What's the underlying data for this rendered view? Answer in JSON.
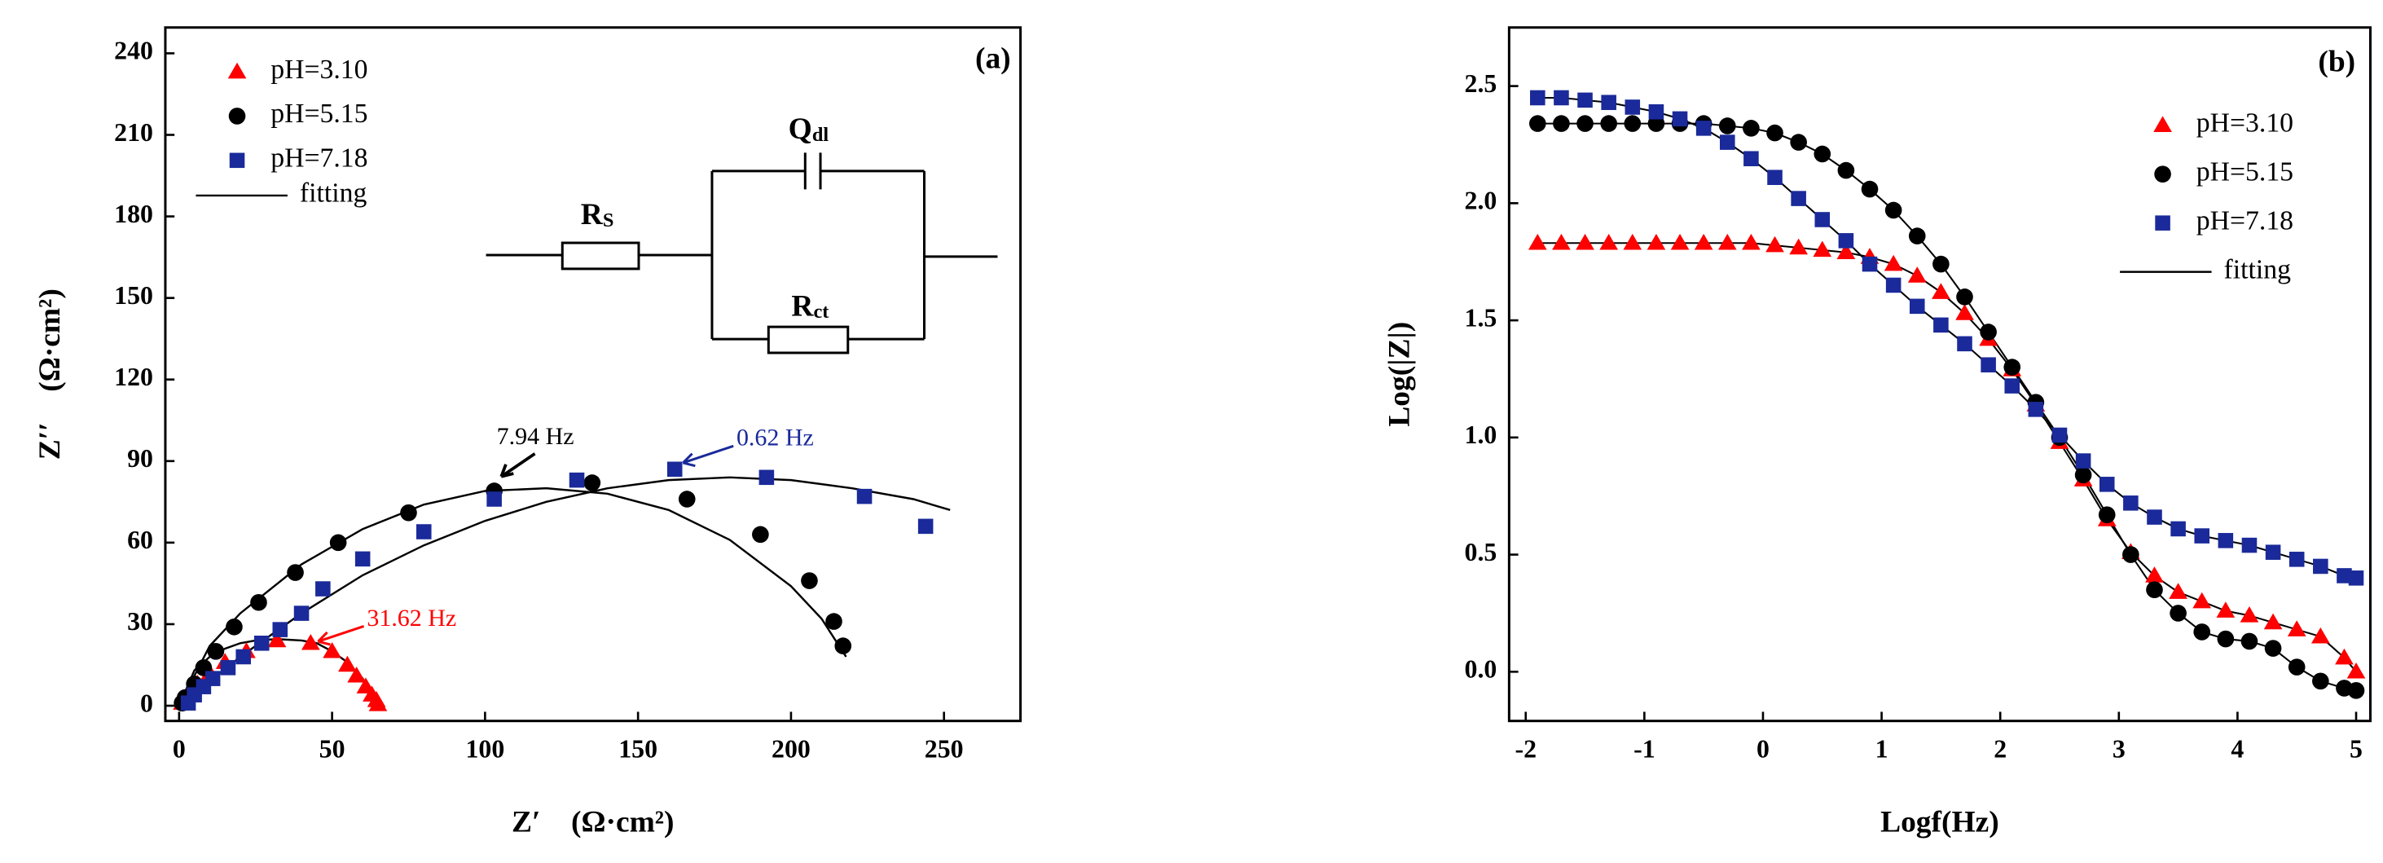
{
  "chart_data": [
    {
      "type": "scatter",
      "panel_label": "(a)",
      "xlabel": "Z′　(Ω·cm²)",
      "ylabel": "Z′′　(Ω·cm²)",
      "xlim": [
        -4.5,
        275
      ],
      "ylim": [
        -5.6,
        249.5
      ],
      "xticks": [
        0,
        50,
        100,
        150,
        200,
        250
      ],
      "yticks": [
        0,
        30,
        60,
        90,
        120,
        150,
        180,
        210,
        240
      ],
      "series": [
        {
          "name": "pH=3.10",
          "color": "#ff0000",
          "marker": "triangle",
          "x": [
            1,
            3,
            6,
            10,
            15,
            22,
            32,
            43,
            50,
            55,
            58,
            61,
            63,
            64.5,
            65
          ],
          "values": [
            1,
            4,
            8,
            12,
            16,
            20,
            24,
            23,
            20,
            15,
            11,
            7,
            4,
            2,
            0.5
          ]
        },
        {
          "name": "pH=5.15",
          "color": "#000000",
          "marker": "circle",
          "x": [
            1,
            2,
            5,
            8,
            12,
            18,
            26,
            38,
            52,
            75,
            103,
            135,
            166,
            190,
            206,
            214,
            217
          ],
          "values": [
            1,
            3,
            8,
            14,
            20,
            29,
            38,
            49,
            60,
            71,
            79,
            82,
            76,
            63,
            46,
            31,
            22
          ]
        },
        {
          "name": "pH=7.18",
          "color": "#1a2a9a",
          "marker": "square",
          "x": [
            3,
            5,
            8,
            11,
            16,
            21,
            27,
            33,
            40,
            47,
            60,
            80,
            103,
            130,
            162,
            192,
            224,
            244
          ],
          "values": [
            1,
            4,
            7,
            10,
            14,
            18,
            23,
            28,
            34,
            43,
            54,
            64,
            76,
            83,
            87,
            84,
            77,
            66
          ]
        }
      ],
      "fit_label": "fitting",
      "fits": [
        {
          "x": [
            0,
            5,
            10,
            15,
            20,
            25,
            32,
            40,
            45,
            50,
            55,
            60,
            65
          ],
          "values": [
            0,
            13,
            18,
            21,
            23,
            24,
            24.5,
            24,
            23,
            20,
            16,
            10,
            0
          ]
        },
        {
          "x": [
            0,
            10,
            20,
            40,
            60,
            80,
            100,
            120,
            140,
            160,
            180,
            200,
            210,
            218
          ],
          "values": [
            0,
            22,
            34,
            52,
            65,
            74,
            79,
            80,
            78,
            72,
            61,
            44,
            32,
            18
          ]
        },
        {
          "x": [
            0,
            20,
            40,
            60,
            80,
            100,
            120,
            140,
            160,
            180,
            200,
            220,
            240,
            252
          ],
          "values": [
            0,
            18,
            34,
            48,
            59,
            68,
            75,
            80,
            83,
            84,
            83,
            80,
            76,
            72
          ]
        }
      ],
      "annotations": [
        "7.94 Hz",
        "0.62 Hz",
        "31.62 Hz"
      ],
      "circuit": {
        "rs": {
          "main": "R",
          "sub": "S"
        },
        "q": {
          "main": "Q",
          "sub": "dl"
        },
        "rct": {
          "main": "R",
          "sub": "ct"
        }
      }
    },
    {
      "type": "scatter",
      "panel_label": "(b)",
      "xlabel": "Logf(Hz)",
      "ylabel": "Log(|Z|)",
      "xlim": [
        -2.14,
        5.12
      ],
      "ylim": [
        -0.21,
        2.75
      ],
      "xticks": [
        -2,
        -1,
        0,
        1,
        2,
        3,
        4,
        5
      ],
      "yticks": [
        {
          "value": 0,
          "label": "0.0"
        },
        0.5,
        {
          "value": 1,
          "label": "1.0"
        },
        1.5,
        {
          "value": 2,
          "label": "2.0"
        },
        2.5
      ],
      "x": [
        -1.9,
        -1.7,
        -1.5,
        -1.3,
        -1.1,
        -0.9,
        -0.7,
        -0.5,
        -0.3,
        -0.1,
        0.1,
        0.3,
        0.5,
        0.7,
        0.9,
        1.1,
        1.3,
        1.5,
        1.7,
        1.9,
        2.1,
        2.3,
        2.5,
        2.7,
        2.9,
        3.1,
        3.3,
        3.5,
        3.7,
        3.9,
        4.1,
        4.3,
        4.5,
        4.7,
        4.9,
        5.0
      ],
      "series": [
        {
          "name": "pH=3.10",
          "color": "#ff0000",
          "marker": "triangle",
          "values": [
            1.83,
            1.83,
            1.83,
            1.83,
            1.83,
            1.83,
            1.83,
            1.83,
            1.83,
            1.83,
            1.82,
            1.81,
            1.8,
            1.79,
            1.77,
            1.74,
            1.69,
            1.62,
            1.53,
            1.42,
            1.29,
            1.14,
            0.98,
            0.82,
            0.65,
            0.51,
            0.41,
            0.34,
            0.3,
            0.26,
            0.24,
            0.21,
            0.18,
            0.15,
            0.06,
            0.0
          ]
        },
        {
          "name": "pH=5.15",
          "color": "#000000",
          "marker": "circle",
          "values": [
            2.34,
            2.34,
            2.34,
            2.34,
            2.34,
            2.34,
            2.34,
            2.34,
            2.33,
            2.32,
            2.3,
            2.26,
            2.21,
            2.14,
            2.06,
            1.97,
            1.86,
            1.74,
            1.6,
            1.45,
            1.3,
            1.15,
            1.0,
            0.84,
            0.67,
            0.5,
            0.35,
            0.25,
            0.17,
            0.14,
            0.13,
            0.1,
            0.02,
            -0.04,
            -0.07,
            -0.08
          ]
        },
        {
          "name": "pH=7.18",
          "color": "#1a2a9a",
          "marker": "square",
          "values": [
            2.45,
            2.45,
            2.44,
            2.43,
            2.41,
            2.39,
            2.36,
            2.32,
            2.26,
            2.19,
            2.11,
            2.02,
            1.93,
            1.84,
            1.74,
            1.65,
            1.56,
            1.48,
            1.4,
            1.31,
            1.22,
            1.12,
            1.01,
            0.9,
            0.8,
            0.72,
            0.66,
            0.61,
            0.58,
            0.56,
            0.54,
            0.51,
            0.48,
            0.45,
            0.41,
            0.4
          ]
        }
      ],
      "fit_label": "fitting"
    }
  ]
}
